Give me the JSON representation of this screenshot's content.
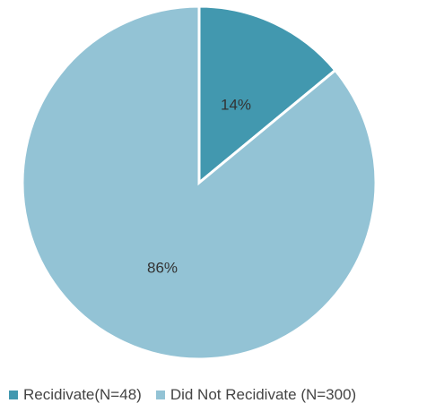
{
  "chart_data": {
    "type": "pie",
    "categories": [
      "Recidivate(N=48)",
      "Did Not Recidivate (N=300)"
    ],
    "values": [
      14,
      86
    ],
    "data_labels": [
      "14%",
      "86%"
    ],
    "colors": [
      "#4298AF",
      "#93C3D5"
    ],
    "start_angle": "12 o'clock, clockwise",
    "legend": "bottom"
  }
}
